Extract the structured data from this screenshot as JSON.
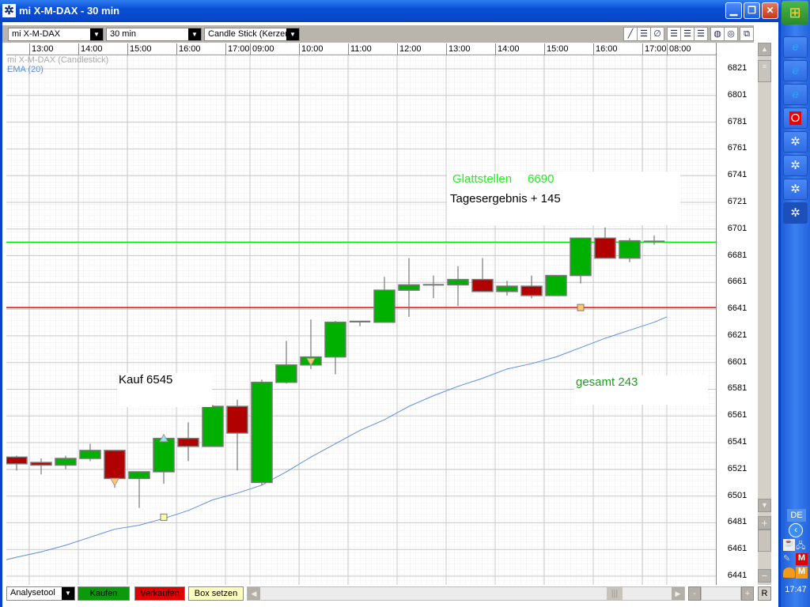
{
  "window": {
    "title": "mi X-M-DAX - 30 min",
    "app_icon": "snowflake-app-icon"
  },
  "toolbar": {
    "instrument": "mi X-M-DAX",
    "interval": "30 min",
    "chart_type": "Candle Stick (Kerzen",
    "tools": [
      "line-tool-icon",
      "fib-lines-icon",
      "no-draw-icon",
      "grid-style-1-icon",
      "grid-style-2-icon",
      "grid-style-3-icon",
      "color-scheme-1-icon",
      "color-scheme-2-icon",
      "detach-window-icon"
    ]
  },
  "chart_data": {
    "type": "candlestick",
    "series_labels": {
      "main": "mi X-M-DAX (Candlestick)",
      "ema": "EMA (20)"
    },
    "colors": {
      "up": "#00b000",
      "down": "#b00000",
      "ema": "#5b8ee0",
      "exit_line": "#00ee00",
      "entry_line": "#ff0000"
    },
    "y_ticks": [
      6821,
      6801,
      6781,
      6761,
      6741,
      6721,
      6701,
      6681,
      6661,
      6641,
      6621,
      6601,
      6581,
      6561,
      6541,
      6521,
      6501,
      6481,
      6461,
      6441
    ],
    "ylim": [
      6441,
      6821
    ],
    "x_ticks": [
      {
        "label": "13:00",
        "bar": 1
      },
      {
        "label": "14:00",
        "bar": 3
      },
      {
        "label": "15:00",
        "bar": 5
      },
      {
        "label": "16:00",
        "bar": 7
      },
      {
        "label": "17:00",
        "bar": 9
      },
      {
        "label": "09:00",
        "bar": 10
      },
      {
        "label": "10:00",
        "bar": 12
      },
      {
        "label": "11:00",
        "bar": 14
      },
      {
        "label": "12:00",
        "bar": 16
      },
      {
        "label": "13:00",
        "bar": 18
      },
      {
        "label": "14:00",
        "bar": 20
      },
      {
        "label": "15:00",
        "bar": 22
      },
      {
        "label": "16:00",
        "bar": 24
      },
      {
        "label": "17:00",
        "bar": 26
      },
      {
        "label": "08:00",
        "bar": 27
      }
    ],
    "candles": [
      [
        6529,
        6530,
        6519,
        6524
      ],
      [
        6525,
        6528,
        6516,
        6523
      ],
      [
        6523,
        6530,
        6520,
        6528
      ],
      [
        6528,
        6539,
        6526,
        6534
      ],
      [
        6534,
        6534,
        6506,
        6513
      ],
      [
        6513,
        6518,
        6491,
        6518
      ],
      [
        6518,
        6546,
        6509,
        6543
      ],
      [
        6543,
        6555,
        6526,
        6537
      ],
      [
        6537,
        6568,
        6537,
        6567
      ],
      [
        6567,
        6572,
        6519,
        6547
      ],
      [
        6510,
        6587,
        6508,
        6585
      ],
      [
        6585,
        6616,
        6584,
        6598
      ],
      [
        6598,
        6632,
        6595,
        6604
      ],
      [
        6604,
        6631,
        6591,
        6630
      ],
      [
        6630,
        6631,
        6627,
        6631
      ],
      [
        6630,
        6664,
        6630,
        6654
      ],
      [
        6654,
        6678,
        6634,
        6658
      ],
      [
        6658,
        6665,
        6648,
        6658.5
      ],
      [
        6658,
        6672,
        6642,
        6662
      ],
      [
        6662,
        6678,
        6653,
        6653
      ],
      [
        6653,
        6661,
        6650,
        6657
      ],
      [
        6657,
        6665,
        6648,
        6650
      ],
      [
        6650,
        6665,
        6650,
        6665
      ],
      [
        6665,
        6693,
        6659,
        6693
      ],
      [
        6693,
        6701,
        6678,
        6678
      ],
      [
        6678,
        6693,
        6675,
        6691
      ],
      [
        6690.5,
        6695,
        6688,
        6691
      ]
    ],
    "ema": [
      6454,
      6458,
      6463,
      6469,
      6475,
      6478,
      6483,
      6489,
      6497,
      6502,
      6508,
      6518,
      6529,
      6539,
      6549,
      6557,
      6567,
      6575,
      6582,
      6588,
      6595,
      6599,
      6604,
      6611,
      6618,
      6624,
      6630
    ],
    "hlines": [
      {
        "price": 6690,
        "kind": "exit"
      },
      {
        "price": 6641,
        "kind": "entry"
      }
    ],
    "markers": [
      {
        "bar": 4,
        "price": 6510,
        "kind": "sell-triangle"
      },
      {
        "bar": 6,
        "price": 6543,
        "kind": "buy-triangle"
      },
      {
        "bar": 12,
        "price": 6600,
        "kind": "sell-triangle"
      },
      {
        "bar": 6,
        "price": 6484,
        "kind": "box"
      },
      {
        "bar": 23,
        "price": 6641,
        "kind": "box"
      }
    ],
    "annotations": {
      "buy": "Kauf  6545",
      "close_label": "Glattstellen",
      "close_value": "6690",
      "day_result": "Tagesergebnis  + 145",
      "total": "gesamt 243"
    }
  },
  "bottom": {
    "analysis": "Analysetool",
    "buy": "Kaufen",
    "sell": "Verkaufen",
    "box": "Box setzen",
    "reset": "R",
    "zoom_out": "-",
    "zoom_in": "+"
  },
  "taskbar": {
    "items": [
      "internet-explorer-icon",
      "internet-explorer-icon",
      "internet-explorer-icon",
      "vodafone-icon",
      "snowflake-app-icon",
      "snowflake-app-icon",
      "snowflake-app-icon",
      "snowflake-app-icon"
    ],
    "language": "DE",
    "clock": "17:47"
  }
}
